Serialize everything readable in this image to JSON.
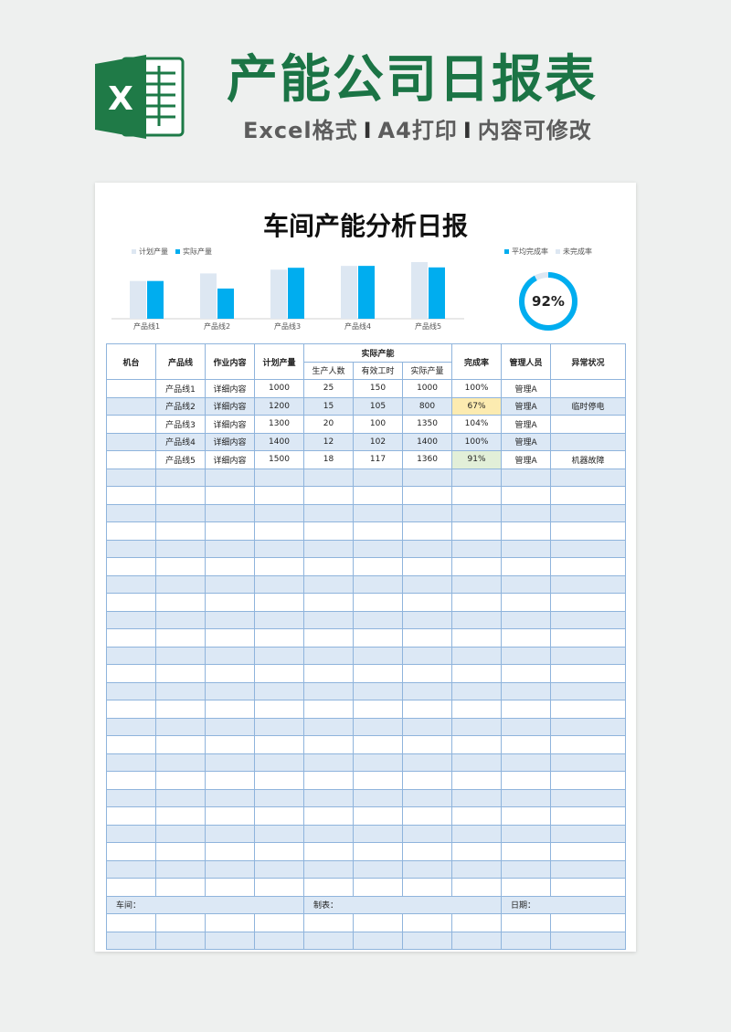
{
  "banner": {
    "logo_letter": "X",
    "title": "产能公司日报表",
    "subtitle_parts": [
      "Excel格式",
      "A4打印",
      "内容可修改"
    ],
    "separator": "I"
  },
  "sheet": {
    "title": "车间产能分析日报"
  },
  "chart_data": [
    {
      "type": "bar",
      "categories": [
        "产品线1",
        "产品线2",
        "产品线3",
        "产品线4",
        "产品线5"
      ],
      "series": [
        {
          "name": "计划产量",
          "values": [
            1000,
            1200,
            1300,
            1400,
            1500
          ],
          "color": "#dde7f2"
        },
        {
          "name": "实际产量",
          "values": [
            1000,
            800,
            1350,
            1400,
            1360
          ],
          "color": "#00adef"
        }
      ],
      "ylim": [
        0,
        1500
      ],
      "legend": "top-left"
    },
    {
      "type": "pie",
      "categories": [
        "平均完成率",
        "未完成率"
      ],
      "values": [
        92,
        8
      ],
      "colors": [
        "#00adef",
        "#dde7f2"
      ],
      "center_label": "92%",
      "legend": "top-right"
    }
  ],
  "table": {
    "headers": {
      "machine": "机台",
      "line": "产品线",
      "work": "作业内容",
      "plan": "计划产量",
      "actual_group": "实际产能",
      "workers": "生产人数",
      "hours": "有效工时",
      "actual": "实际产量",
      "rate": "完成率",
      "manager": "管理人员",
      "anomaly": "异常状况"
    },
    "rows": [
      {
        "machine": "",
        "line": "产品线1",
        "work": "详细内容",
        "plan": "1000",
        "workers": "25",
        "hours": "150",
        "actual": "1000",
        "rate": "100%",
        "manager": "管理A",
        "anomaly": "",
        "highlight": ""
      },
      {
        "machine": "",
        "line": "产品线2",
        "work": "详细内容",
        "plan": "1200",
        "workers": "15",
        "hours": "105",
        "actual": "800",
        "rate": "67%",
        "manager": "管理A",
        "anomaly": "临时停电",
        "highlight": "yellow"
      },
      {
        "machine": "",
        "line": "产品线3",
        "work": "详细内容",
        "plan": "1300",
        "workers": "20",
        "hours": "100",
        "actual": "1350",
        "rate": "104%",
        "manager": "管理A",
        "anomaly": "",
        "highlight": ""
      },
      {
        "machine": "",
        "line": "产品线4",
        "work": "详细内容",
        "plan": "1400",
        "workers": "12",
        "hours": "102",
        "actual": "1400",
        "rate": "100%",
        "manager": "管理A",
        "anomaly": "",
        "highlight": ""
      },
      {
        "machine": "",
        "line": "产品线5",
        "work": "详细内容",
        "plan": "1500",
        "workers": "18",
        "hours": "117",
        "actual": "1360",
        "rate": "91%",
        "manager": "管理A",
        "anomaly": "机器故障",
        "highlight": "green"
      }
    ],
    "footer": {
      "workshop": "车间：",
      "maker": "制表：",
      "date": "日期："
    }
  },
  "colors": {
    "brand_green": "#1b7445",
    "chart_blue": "#00adef",
    "chart_light": "#dde7f2",
    "row_blue": "#dce8f5",
    "grid": "#8fb4dc"
  }
}
